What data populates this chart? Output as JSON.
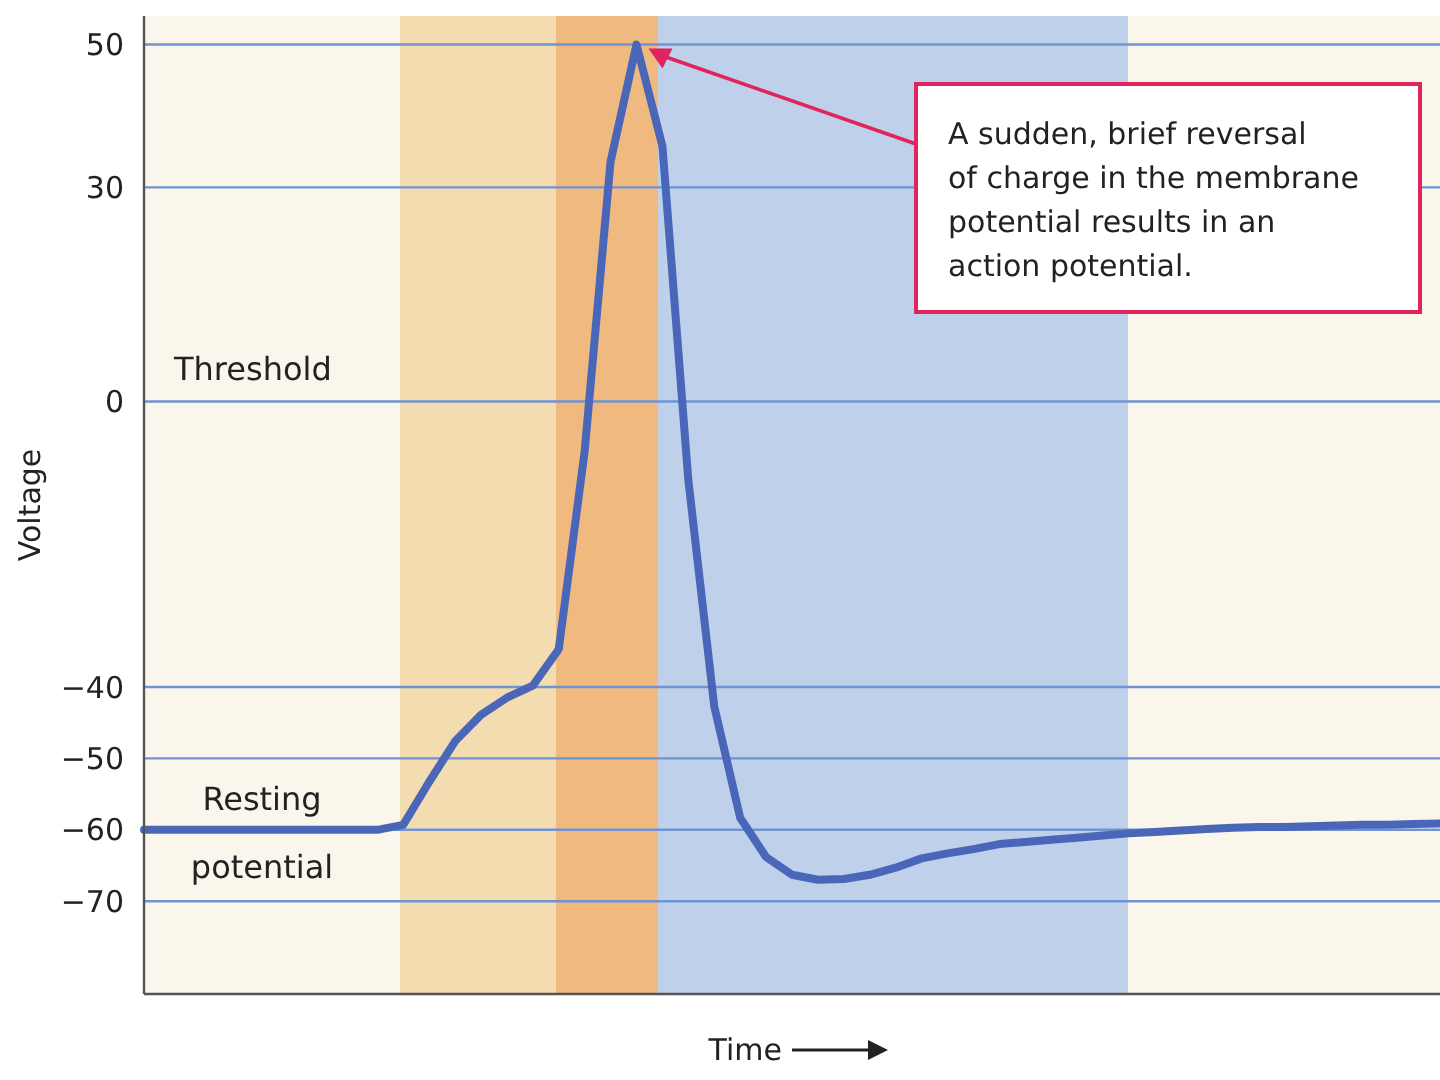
{
  "chart_data": {
    "type": "line",
    "xlabel": "Time",
    "ylabel": "Voltage",
    "categories": [
      null,
      null,
      null,
      null,
      null,
      null,
      null,
      null,
      null,
      null,
      null,
      null,
      null,
      null,
      null,
      null,
      null,
      null,
      null,
      null,
      null,
      null,
      null,
      null,
      null,
      null,
      null,
      null,
      null,
      null,
      null,
      null,
      null,
      null,
      null,
      null,
      null,
      null,
      null,
      null,
      null,
      null,
      null,
      null,
      null,
      null,
      null,
      null,
      null,
      null,
      null
    ],
    "series": [
      {
        "color": "#4a66b8",
        "values": [
          -60,
          -60,
          -60,
          -60,
          -60,
          -60,
          -60,
          -60,
          -60,
          -60,
          -59.3,
          -53.3,
          -47.6,
          -43.9,
          -41.5,
          -39.8,
          -34.7,
          -7,
          33.6,
          50,
          35.8,
          -11,
          -42.7,
          -58.3,
          -63.8,
          -66.3,
          -67,
          -66.9,
          -66.3,
          -65.3,
          -64,
          -63.3,
          -62.7,
          -62,
          -61.7,
          -61.4,
          -61.1,
          -60.8,
          -60.5,
          -60.3,
          -60.1,
          -59.9,
          -59.7,
          -59.6,
          -59.6,
          -59.5,
          -59.4,
          -59.3,
          -59.3,
          -59.2,
          -59.1
        ]
      }
    ],
    "ylim": [
      -83,
      54
    ],
    "yticks": [
      50,
      30,
      0,
      {
        "value": -40,
        "label": "−40"
      },
      {
        "value": -50,
        "label": "−50"
      },
      {
        "value": -60,
        "label": "−60"
      },
      {
        "value": -70,
        "label": "−70"
      }
    ],
    "tick_labels": "y",
    "grid": "y",
    "marker": "none",
    "line_style": "solid",
    "annotations": [
      "Threshold",
      {
        "text": "Resting potential",
        "y": -60
      },
      "A sudden, brief reversal of charge in the membrane potential results in an action potential."
    ]
  }
}
